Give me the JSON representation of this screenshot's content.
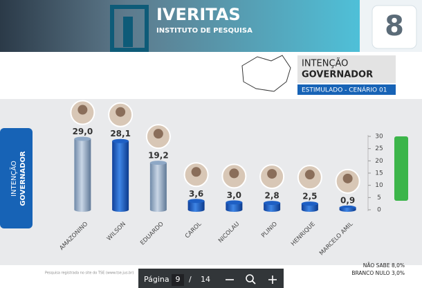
{
  "header": {
    "brand": "IVERITAS",
    "tagline": "INSTITUTO DE PESQUISA",
    "page_number": "8",
    "title_line1": "INTENÇÃO",
    "title_line2": "GOVERNADOR",
    "subtitle": "ESTIMULADO - CENÁRIO 01"
  },
  "side_tab": {
    "line1": "INTENÇÃO",
    "line2": "GOVERNADOR"
  },
  "chart_data": {
    "type": "bar",
    "categories": [
      "AMAZONINO",
      "WILSON",
      "EDUARDO",
      "CAROL",
      "NICOLAU",
      "PLINIO",
      "HENRIQUE",
      "MARCELO AMIL"
    ],
    "values": [
      29.0,
      28.1,
      19.2,
      3.6,
      3.0,
      2.8,
      2.5,
      0.9
    ],
    "value_labels": [
      "29,0",
      "28,1",
      "19,2",
      "3,6",
      "3,0",
      "2,8",
      "2,5",
      "0,9"
    ],
    "colors": [
      "#8ea8c6",
      "#1e5fc4",
      "#8ea8c6",
      "#1e5fc4",
      "#1e5fc4",
      "#1e5fc4",
      "#1e5fc4",
      "#1e5fc4"
    ],
    "ylim": [
      0,
      30
    ],
    "yticks": [
      0,
      5,
      10,
      15,
      20,
      25,
      30
    ]
  },
  "notes": {
    "nao_sabe": "NÃO SABE 8,0%",
    "branco_nulo": "BRANCO NULO  3,0%",
    "footer": "Pesquisa registrada no site do TSE (www.tse.jus.br)"
  },
  "toolbar": {
    "label": "Página",
    "current": "9",
    "separator": "/",
    "total": "14"
  }
}
